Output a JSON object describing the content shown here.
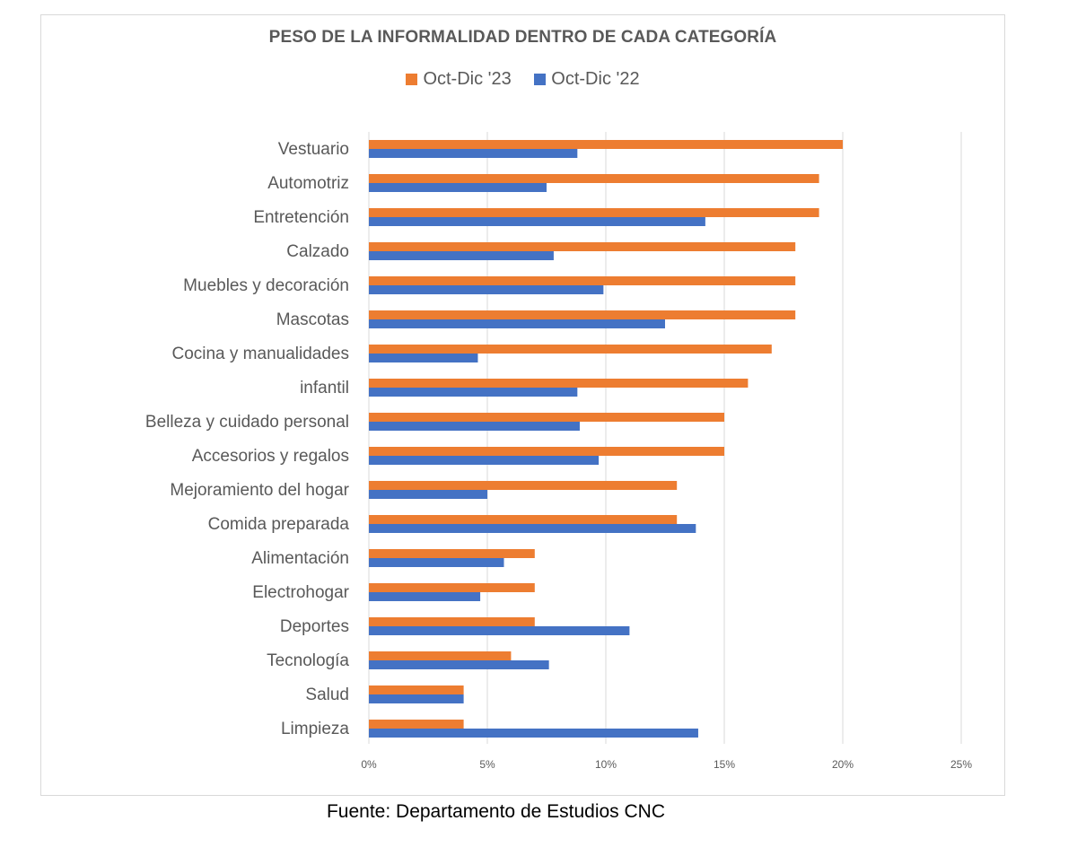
{
  "chart_data": {
    "type": "bar",
    "orientation": "horizontal",
    "title": "PESO DE LA INFORMALIDAD DENTRO DE CADA CATEGORÍA",
    "xlabel": "",
    "ylabel": "",
    "xlim": [
      0,
      25
    ],
    "x_ticks": [
      "0%",
      "5%",
      "10%",
      "15%",
      "20%",
      "25%"
    ],
    "x_tick_values": [
      0,
      5,
      10,
      15,
      20,
      25
    ],
    "grid": "vertical",
    "legend_position": "top",
    "categories": [
      "Vestuario",
      "Automotriz",
      "Entretención",
      "Calzado",
      "Muebles y decoración",
      "Mascotas",
      "Cocina y manualidades",
      "infantil",
      "Belleza y cuidado personal",
      "Accesorios y regalos",
      "Mejoramiento del hogar",
      "Comida preparada",
      "Alimentación",
      "Electrohogar",
      "Deportes",
      "Tecnología",
      "Salud",
      "Limpieza"
    ],
    "series": [
      {
        "name": "Oct-Dic '23",
        "color": "#ED7D31",
        "values": [
          20,
          19,
          19,
          18,
          18,
          18,
          17,
          16,
          15,
          15,
          13,
          13,
          7,
          7,
          7,
          6,
          4,
          4
        ]
      },
      {
        "name": "Oct-Dic '22",
        "color": "#4472C4",
        "values": [
          8.8,
          7.5,
          14.2,
          7.8,
          9.9,
          12.5,
          4.6,
          8.8,
          8.9,
          9.7,
          5.0,
          13.8,
          5.7,
          4.7,
          11.0,
          7.6,
          4.0,
          13.9
        ]
      }
    ],
    "unit": "%"
  },
  "source_note": "Fuente: Departamento de Estudios CNC"
}
